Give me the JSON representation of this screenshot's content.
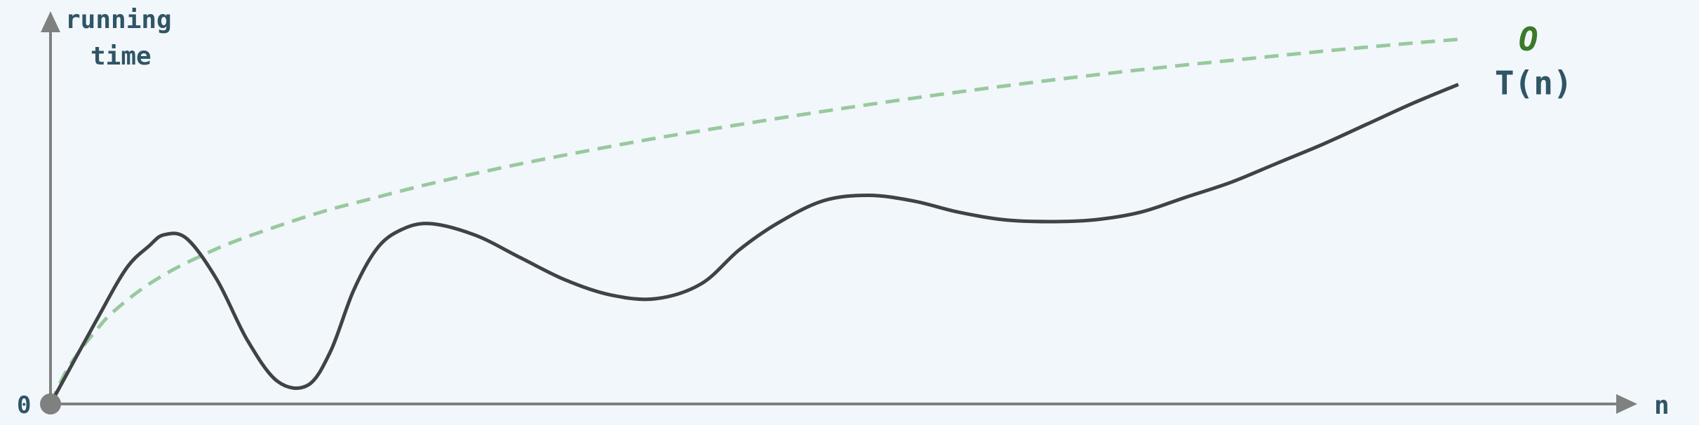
{
  "chart_data": {
    "type": "line",
    "ylabel_lines": [
      "running",
      "time"
    ],
    "xlabel": "n",
    "origin_label": "0",
    "xlim": [
      0,
      100
    ],
    "ylim": [
      0,
      100
    ],
    "grid": false,
    "series": [
      {
        "name": "T(n)",
        "style": "solid",
        "color": "#404346",
        "x": [
          0,
          3,
          5,
          6.5,
          7.5,
          9,
          11,
          13,
          15,
          17,
          18.5,
          20,
          21.5,
          23,
          25,
          28,
          31,
          34,
          37,
          40,
          43,
          45.5,
          48,
          51,
          54,
          57,
          60,
          63,
          66,
          69,
          72,
          75,
          78,
          81,
          84,
          87,
          90,
          93
        ],
        "y": [
          0,
          22,
          36,
          42,
          45,
          44,
          33,
          17,
          6,
          5,
          14,
          30,
          41,
          46,
          48,
          45,
          39,
          33,
          29,
          28,
          32,
          41,
          48,
          54,
          55.5,
          54,
          51,
          49,
          48.5,
          49,
          51,
          55,
          59,
          64,
          69,
          74.5,
          80,
          85
        ]
      },
      {
        "name": "O",
        "style": "dashed",
        "color": "#98c99e",
        "label_color": "#3a7a2a",
        "x": [
          0,
          1,
          2,
          3,
          4,
          6,
          8,
          10,
          12,
          15,
          18,
          21,
          25,
          30,
          35,
          40,
          45,
          50,
          55,
          60,
          65,
          70,
          75,
          80,
          85,
          90,
          93
        ],
        "y": [
          0,
          8.5,
          14.5,
          19.5,
          24,
          30.5,
          35.5,
          39.5,
          43,
          47.3,
          51.2,
          54.4,
          58.5,
          63,
          67,
          70.7,
          74,
          77.2,
          80.2,
          83,
          85.6,
          88,
          90.2,
          92.2,
          94.2,
          96,
          97
        ]
      }
    ],
    "colors": {
      "background": "#f2f7fb",
      "axes": "#7f8080",
      "label": "#2f5566",
      "origin_dot": "#7f8080"
    }
  }
}
